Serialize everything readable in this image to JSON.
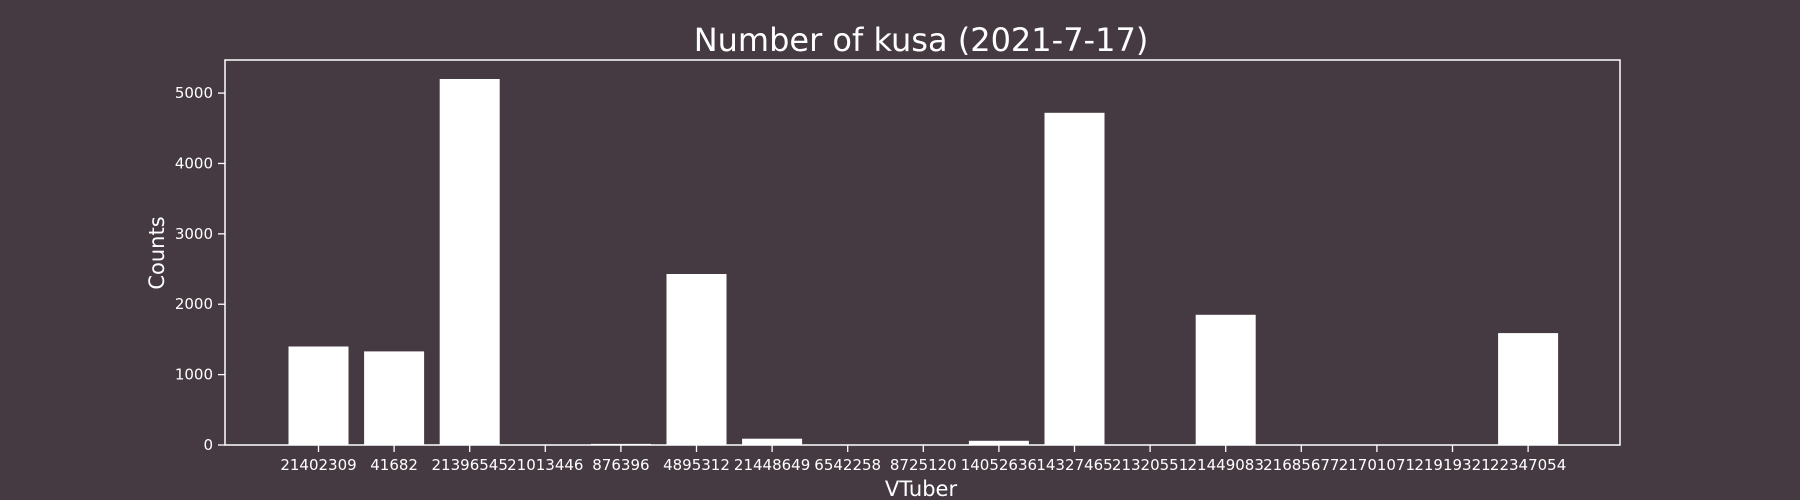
{
  "chart_data": {
    "type": "bar",
    "title": "Number of kusa (2021-7-17)",
    "xlabel": "VTuber",
    "ylabel": "Counts",
    "categories": [
      "21402309",
      "41682",
      "21396545",
      "21013446",
      "876396",
      "4895312",
      "21448649",
      "6542258",
      "8725120",
      "14052636",
      "14327465",
      "21320551",
      "21449083",
      "21685677",
      "21701071",
      "21919321",
      "22347054"
    ],
    "values": [
      1400,
      1330,
      5200,
      0,
      15,
      2430,
      90,
      0,
      0,
      60,
      4720,
      0,
      1850,
      0,
      0,
      0,
      1590
    ],
    "ylim": [
      0,
      5470
    ],
    "yticks": [
      0,
      1000,
      2000,
      3000,
      4000,
      5000
    ],
    "grid": false,
    "colors": {
      "background": "#463a42",
      "bar": "#ffffff",
      "axes": "#ffffff",
      "text": "#ffffff"
    }
  }
}
